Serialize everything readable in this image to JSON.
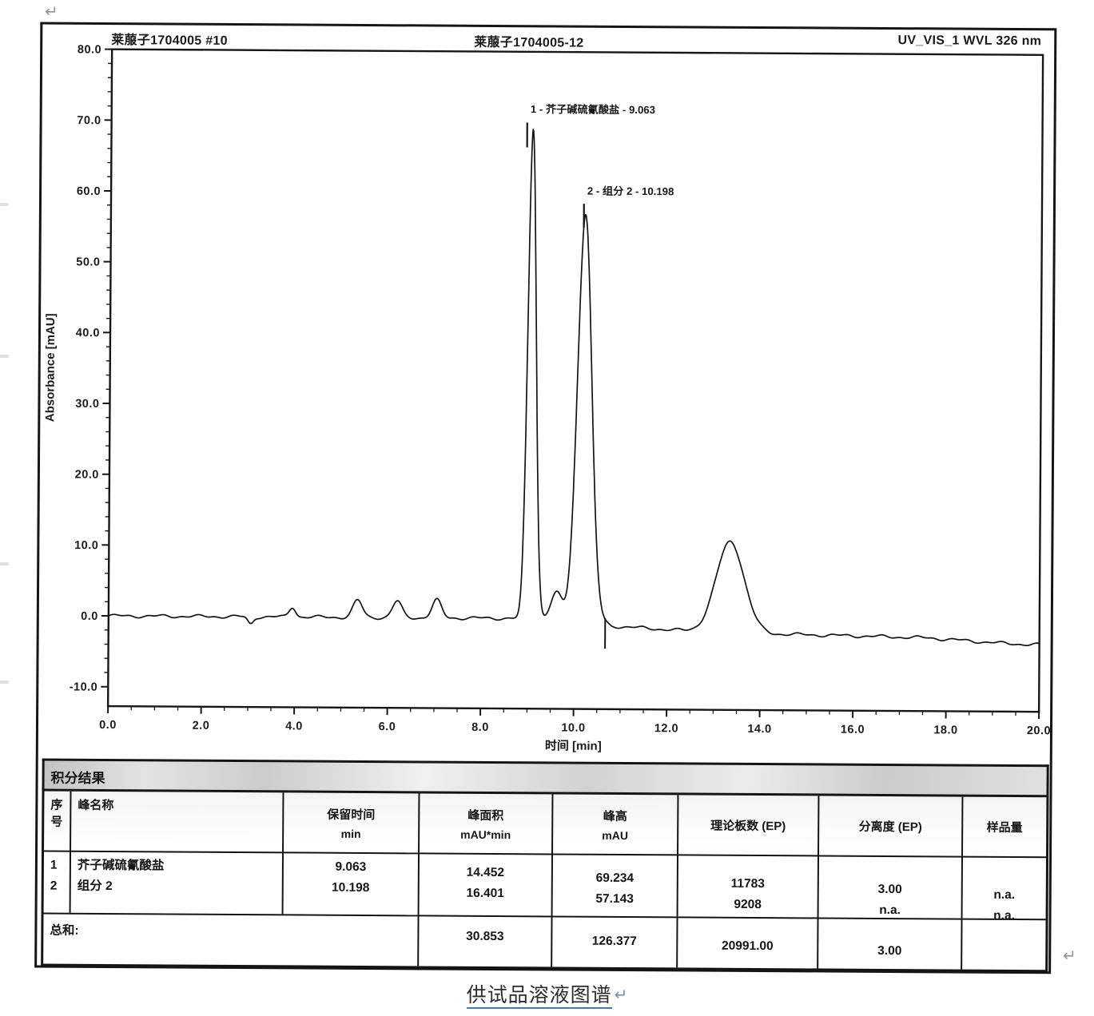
{
  "colors": {
    "ink": "#1a1a1a",
    "caption_underline": "#4577bd",
    "scan_gray": "#c2c6cb"
  },
  "marks": {
    "top_left": "↵",
    "bottom_right": "↵",
    "caption_return": "↵"
  },
  "header": {
    "left": "莱菔子1704005 #10",
    "center": "莱菔子1704005-12",
    "right": "UV_VIS_1 WVL 326 nm"
  },
  "chart_data": {
    "type": "line",
    "channel_title": "UV_VIS_1 WVL 326 nm",
    "xlabel": "时间 [min]",
    "ylabel": "Absorbance [mAU]",
    "xlim": [
      0,
      20
    ],
    "ylim": [
      -10,
      80
    ],
    "grid": false,
    "x_ticks": [
      {
        "v": 0,
        "label": "0.0"
      },
      {
        "v": 2,
        "label": "2.0"
      },
      {
        "v": 4,
        "label": "4.0"
      },
      {
        "v": 6,
        "label": "6.0"
      },
      {
        "v": 8,
        "label": "8.0"
      },
      {
        "v": 10,
        "label": "10.0"
      },
      {
        "v": 12,
        "label": "12.0"
      },
      {
        "v": 14,
        "label": "14.0"
      },
      {
        "v": 16,
        "label": "16.0"
      },
      {
        "v": 18,
        "label": "18.0"
      },
      {
        "v": 20,
        "label": "20.0"
      }
    ],
    "y_ticks": [
      {
        "v": -10,
        "label": "-10.0"
      },
      {
        "v": 0,
        "label": "0.0"
      },
      {
        "v": 10,
        "label": "10.0"
      },
      {
        "v": 20,
        "label": "20.0"
      },
      {
        "v": 30,
        "label": "30.0"
      },
      {
        "v": 40,
        "label": "40.0"
      },
      {
        "v": 50,
        "label": "50.0"
      },
      {
        "v": 60,
        "label": "60.0"
      },
      {
        "v": 70,
        "label": "70.0"
      },
      {
        "v": 80,
        "label": "80.0"
      }
    ],
    "peaks": [
      {
        "no": 1,
        "name": "芥子碱硫氰酸盐",
        "retention_min": 9.063,
        "area_mau_min": 14.452,
        "height_mau": 69.234,
        "plates_ep": 11783,
        "resolution_ep": "3.00",
        "amount": "n.a."
      },
      {
        "no": 2,
        "name": "组分 2",
        "retention_min": 10.198,
        "area_mau_min": 16.401,
        "height_mau": 57.143,
        "plates_ep": 9208,
        "resolution_ep": "n.a.",
        "amount": "n.a."
      }
    ],
    "annotations": [
      {
        "text": "1 - 芥子碱硫氰酸盐 - 9.063",
        "leader_t": 8.93,
        "leader_v": [
          66.5,
          70.0
        ],
        "text_v": 71.4
      },
      {
        "text": "2 - 组分 2 - 10.198",
        "leader_t": 10.16,
        "leader_v": [
          55.2,
          58.6
        ],
        "text_v": 59.9
      }
    ],
    "baseline": [
      [
        0,
        0
      ],
      [
        10.5,
        0
      ],
      [
        10.8,
        -1.0
      ],
      [
        11.6,
        -1.3
      ],
      [
        12.4,
        -1.6
      ],
      [
        14.4,
        -2.0
      ],
      [
        16.2,
        -2.2
      ],
      [
        17.6,
        -2.4
      ],
      [
        19.2,
        -3.1
      ],
      [
        20,
        -3.3
      ]
    ],
    "gaussians": [
      {
        "c": 3.05,
        "h": -1.0,
        "s": 0.06
      },
      {
        "c": 3.95,
        "h": 1.4,
        "s": 0.07
      },
      {
        "c": 5.35,
        "h": 2.4,
        "s": 0.1
      },
      {
        "c": 6.2,
        "h": 2.3,
        "s": 0.1
      },
      {
        "c": 7.05,
        "h": 2.5,
        "s": 0.1
      },
      {
        "c": 9.063,
        "h": 69.2,
        "s": 0.088
      },
      {
        "c": 9.62,
        "h": 3.6,
        "s": 0.12
      },
      {
        "c": 10.198,
        "h": 57.3,
        "s": 0.15
      },
      {
        "c": 13.35,
        "h": 12.8,
        "s": 0.3
      }
    ],
    "integration_mark_t": 10.67
  },
  "table": {
    "title": "积分结果",
    "columns": [
      {
        "key": "no",
        "label": "序号",
        "unit": ""
      },
      {
        "key": "name",
        "label": "峰名称",
        "unit": ""
      },
      {
        "key": "retention",
        "label": "保留时间",
        "unit": "min"
      },
      {
        "key": "area",
        "label": "峰面积",
        "unit": "mAU*min"
      },
      {
        "key": "height",
        "label": "峰高",
        "unit": "mAU"
      },
      {
        "key": "plates",
        "label": "理论板数 (EP)",
        "unit": ""
      },
      {
        "key": "resolution",
        "label": "分离度 (EP)",
        "unit": ""
      },
      {
        "key": "amount",
        "label": "样品量",
        "unit": ""
      }
    ],
    "rows": [
      {
        "no": "1",
        "name": "芥子碱硫氰酸盐",
        "retention": "9.063",
        "area": "14.452",
        "height": "69.234",
        "plates": "11783",
        "resolution": "3.00",
        "amount": "n.a."
      },
      {
        "no": "2",
        "name": "组分 2",
        "retention": "10.198",
        "area": "16.401",
        "height": "57.143",
        "plates": "9208",
        "resolution": "n.a.",
        "amount": "n.a."
      }
    ],
    "total": {
      "label": "总和:",
      "area": "30.853",
      "height": "126.377",
      "plates": "20991.00",
      "resolution": "3.00",
      "amount": ""
    }
  },
  "caption": {
    "text": "供试品溶液图谱"
  }
}
